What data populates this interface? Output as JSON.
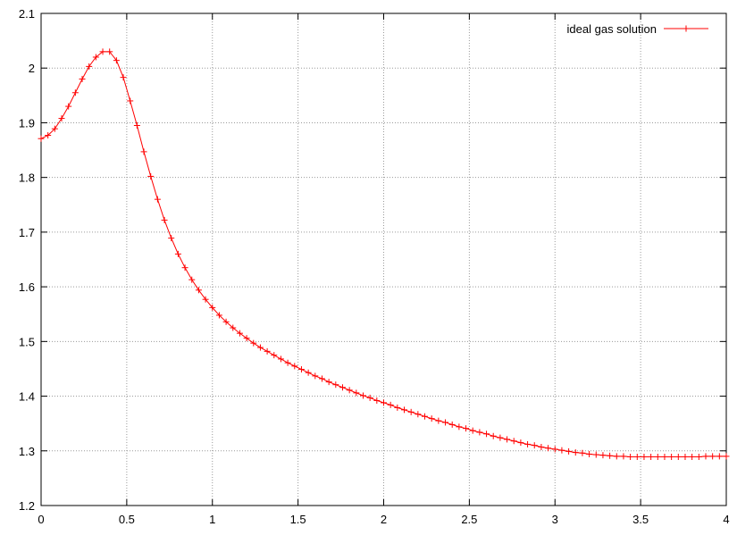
{
  "chart_data": {
    "type": "line",
    "title": "",
    "xlabel": "",
    "ylabel": "",
    "xlim": [
      0,
      4
    ],
    "ylim": [
      1.2,
      2.1
    ],
    "xticks": [
      0,
      0.5,
      1,
      1.5,
      2,
      2.5,
      3,
      3.5,
      4
    ],
    "xtick_labels": [
      "0",
      "0.5",
      "1",
      "1.5",
      "2",
      "2.5",
      "3",
      "3.5",
      "4"
    ],
    "yticks": [
      1.2,
      1.3,
      1.4,
      1.5,
      1.6,
      1.7,
      1.8,
      1.9,
      2.0,
      2.1
    ],
    "ytick_labels": [
      "1.2",
      "1.3",
      "1.4",
      "1.5",
      "1.6",
      "1.7",
      "1.8",
      "1.9",
      "2",
      "2.1"
    ],
    "grid": true,
    "legend_position": "top-right",
    "series": [
      {
        "name": "ideal gas solution",
        "color": "#ff0000",
        "marker": "plus",
        "x": [
          0,
          0.04,
          0.08,
          0.12,
          0.16,
          0.2,
          0.24,
          0.28,
          0.32,
          0.36,
          0.4,
          0.44,
          0.48,
          0.52,
          0.56,
          0.6,
          0.64,
          0.68,
          0.72,
          0.76,
          0.8,
          0.84,
          0.88,
          0.92,
          0.96,
          1.0,
          1.04,
          1.08,
          1.12,
          1.16,
          1.2,
          1.24,
          1.28,
          1.32,
          1.36,
          1.4,
          1.44,
          1.48,
          1.52,
          1.56,
          1.6,
          1.64,
          1.68,
          1.72,
          1.76,
          1.8,
          1.84,
          1.88,
          1.92,
          1.96,
          2.0,
          2.04,
          2.08,
          2.12,
          2.16,
          2.2,
          2.24,
          2.28,
          2.32,
          2.36,
          2.4,
          2.44,
          2.48,
          2.52,
          2.56,
          2.6,
          2.64,
          2.68,
          2.72,
          2.76,
          2.8,
          2.84,
          2.88,
          2.92,
          2.96,
          3.0,
          3.04,
          3.08,
          3.12,
          3.16,
          3.2,
          3.24,
          3.28,
          3.32,
          3.36,
          3.4,
          3.44,
          3.48,
          3.52,
          3.56,
          3.6,
          3.64,
          3.68,
          3.72,
          3.76,
          3.8,
          3.84,
          3.88,
          3.92,
          3.96,
          4.0
        ],
        "y": [
          1.871,
          1.877,
          1.889,
          1.908,
          1.93,
          1.955,
          1.98,
          2.003,
          2.02,
          2.03,
          2.03,
          2.014,
          1.983,
          1.94,
          1.895,
          1.847,
          1.802,
          1.76,
          1.722,
          1.689,
          1.66,
          1.635,
          1.613,
          1.594,
          1.577,
          1.562,
          1.548,
          1.536,
          1.525,
          1.515,
          1.506,
          1.497,
          1.489,
          1.482,
          1.475,
          1.468,
          1.461,
          1.455,
          1.449,
          1.443,
          1.437,
          1.432,
          1.426,
          1.421,
          1.416,
          1.411,
          1.406,
          1.401,
          1.397,
          1.392,
          1.388,
          1.384,
          1.379,
          1.375,
          1.371,
          1.367,
          1.363,
          1.359,
          1.355,
          1.352,
          1.348,
          1.344,
          1.341,
          1.337,
          1.334,
          1.331,
          1.327,
          1.324,
          1.321,
          1.318,
          1.315,
          1.312,
          1.31,
          1.307,
          1.305,
          1.303,
          1.301,
          1.299,
          1.297,
          1.296,
          1.294,
          1.293,
          1.292,
          1.291,
          1.29,
          1.29,
          1.289,
          1.289,
          1.289,
          1.289,
          1.289,
          1.289,
          1.289,
          1.289,
          1.289,
          1.289,
          1.289,
          1.29,
          1.29,
          1.29,
          1.29
        ]
      }
    ]
  }
}
